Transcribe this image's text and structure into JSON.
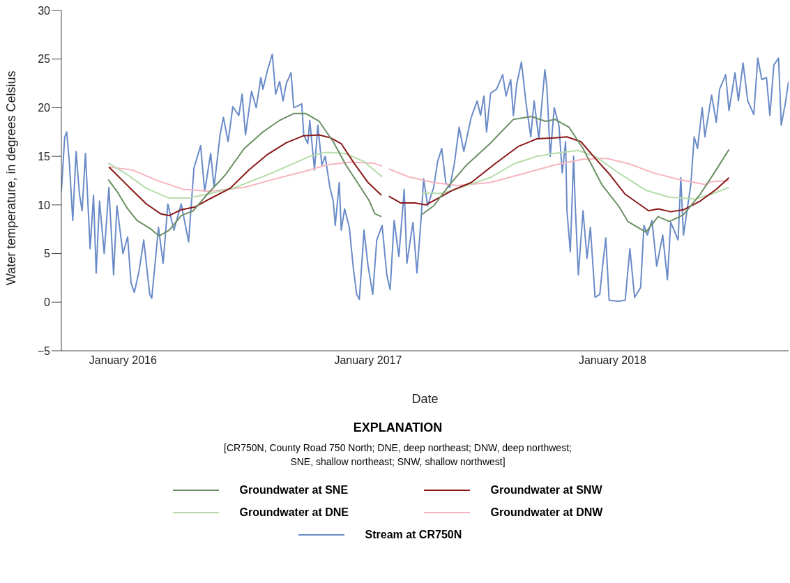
{
  "chart_data": {
    "type": "line",
    "xlabel": "Date",
    "ylabel": "Water temperature, in degrees Celsius",
    "legend_title": "EXPLANATION",
    "annotations": [
      "[CR750N, County Road 750 North; DNE, deep northeast; DNW, deep northwest;\nSNE, shallow northeast; SNW, shallow northwest]"
    ],
    "legend": "bottom",
    "marker": "none",
    "line_style": "solid",
    "grid": false,
    "xlim": [
      "2015-10-01",
      "2018-09-21"
    ],
    "xticks": [
      {
        "value": "2016-01-01",
        "label": "January 2016"
      },
      {
        "value": "2017-01-01",
        "label": "January 2017"
      },
      {
        "value": "2018-01-01",
        "label": "January 2018"
      }
    ],
    "ylim": [
      -5,
      30
    ],
    "yticks": [
      {
        "value": -5,
        "label": "−5"
      },
      0,
      5,
      10,
      15,
      20,
      25,
      30
    ],
    "series": [
      {
        "name": "Groundwater at SNE",
        "color": "#6b8f64",
        "x": [
          "2015-12-10",
          "2015-12-23",
          "2016-01-08",
          "2016-01-22",
          "2016-02-12",
          "2016-02-24",
          "2016-03-10",
          "2016-03-28",
          "2016-04-15",
          "2016-05-06",
          "2016-06-02",
          "2016-06-30",
          "2016-07-28",
          "2016-08-22",
          "2016-09-12",
          "2016-09-30",
          "2016-10-20",
          "2016-11-10",
          "2016-11-29",
          "2016-12-18",
          "2017-01-03",
          "2017-01-11",
          "2017-01-21",
          "2017-02-15",
          "2017-03-22",
          "2017-04-09",
          "2017-05-03",
          "2017-05-28",
          "2017-07-02",
          "2017-08-06",
          "2017-09-02",
          "2017-09-23",
          "2017-10-07",
          "2017-10-28",
          "2017-11-18",
          "2017-12-16",
          "2018-01-10",
          "2018-01-24",
          "2018-02-20",
          "2018-03-10",
          "2018-03-27",
          "2018-04-17",
          "2018-05-12",
          "2018-06-02",
          "2018-06-24"
        ],
        "values": [
          12.6,
          11.4,
          9.6,
          8.4,
          7.5,
          6.8,
          7.4,
          8.9,
          9.4,
          11.1,
          13.1,
          15.8,
          17.5,
          18.7,
          19.4,
          19.4,
          18.6,
          16.5,
          14.1,
          12.1,
          10.4,
          9.1,
          8.8,
          null,
          9.0,
          9.9,
          12.1,
          14.1,
          16.3,
          18.8,
          19.1,
          18.6,
          18.8,
          18.0,
          15.8,
          12.1,
          9.9,
          8.3,
          7.2,
          8.8,
          8.3,
          9.0,
          11.1,
          13.3,
          15.7
        ]
      },
      {
        "name": "Groundwater at SNW",
        "color": "#8b1717",
        "x": [
          "2015-12-11",
          "2015-12-30",
          "2016-01-15",
          "2016-02-05",
          "2016-02-26",
          "2016-03-10",
          "2016-03-28",
          "2016-04-18",
          "2016-05-09",
          "2016-06-09",
          "2016-07-07",
          "2016-08-04",
          "2016-09-01",
          "2016-09-26",
          "2016-10-20",
          "2016-11-06",
          "2016-11-22",
          "2016-12-11",
          "2017-01-01",
          "2017-01-21",
          "2017-01-27",
          "2017-02-01",
          "2017-02-19",
          "2017-03-12",
          "2017-03-28",
          "2017-04-16",
          "2017-05-07",
          "2017-06-04",
          "2017-07-09",
          "2017-08-13",
          "2017-09-10",
          "2017-10-06",
          "2017-10-25",
          "2017-11-15",
          "2017-12-06",
          "2017-12-27",
          "2018-01-20",
          "2018-02-24",
          "2018-03-10",
          "2018-03-29",
          "2018-04-17",
          "2018-05-12",
          "2018-06-05",
          "2018-06-24"
        ],
        "values": [
          13.9,
          12.6,
          11.5,
          10.1,
          9.1,
          8.9,
          9.5,
          9.8,
          10.6,
          11.7,
          13.6,
          15.2,
          16.4,
          17.1,
          17.2,
          16.9,
          16.3,
          14.3,
          12.3,
          11.0,
          null,
          10.9,
          10.2,
          10.2,
          10.0,
          10.7,
          11.5,
          12.3,
          14.2,
          16.0,
          16.8,
          16.9,
          17.0,
          16.5,
          14.8,
          13.2,
          11.1,
          9.4,
          9.6,
          9.3,
          9.5,
          10.4,
          11.6,
          12.8
        ]
      },
      {
        "name": "Groundwater at DNE",
        "color": "#b6dcab",
        "x": [
          "2015-12-10",
          "2016-01-08",
          "2016-02-05",
          "2016-03-10",
          "2016-04-08",
          "2016-05-06",
          "2016-06-17",
          "2016-08-11",
          "2016-10-06",
          "2016-10-30",
          "2016-11-27",
          "2016-12-25",
          "2017-01-22",
          "2017-02-20",
          "2017-03-22",
          "2017-04-23",
          "2017-05-28",
          "2017-07-02",
          "2017-08-06",
          "2017-09-10",
          "2017-10-06",
          "2017-11-11",
          "2017-12-06",
          "2018-01-10",
          "2018-02-20",
          "2018-03-27",
          "2018-05-05",
          "2018-05-29",
          "2018-06-24"
        ],
        "values": [
          14.3,
          13.1,
          11.7,
          10.7,
          10.7,
          11.1,
          11.8,
          13.3,
          15.0,
          15.4,
          15.3,
          14.5,
          12.9,
          null,
          11.2,
          11.2,
          12.0,
          12.8,
          14.2,
          15.0,
          15.3,
          15.6,
          15.0,
          13.3,
          11.5,
          10.8,
          10.6,
          11.1,
          11.8
        ]
      },
      {
        "name": "Groundwater at DNW",
        "color": "#f7b4bf",
        "x": [
          "2015-12-11",
          "2016-01-15",
          "2016-02-18",
          "2016-03-31",
          "2016-05-09",
          "2016-06-30",
          "2016-08-11",
          "2016-10-06",
          "2016-10-30",
          "2016-12-04",
          "2017-01-09",
          "2017-01-22",
          "2017-01-27",
          "2017-02-01",
          "2017-03-02",
          "2017-04-09",
          "2017-05-14",
          "2017-07-02",
          "2017-08-20",
          "2017-10-06",
          "2017-11-18",
          "2017-12-23",
          "2018-01-27",
          "2018-03-03",
          "2018-04-11",
          "2018-05-19",
          "2018-05-29",
          "2018-06-24"
        ],
        "values": [
          13.9,
          13.6,
          12.6,
          11.6,
          11.4,
          11.8,
          12.6,
          13.6,
          14.1,
          14.4,
          14.3,
          14.0,
          null,
          13.7,
          12.9,
          12.3,
          12.0,
          12.3,
          13.2,
          14.1,
          14.7,
          14.8,
          14.2,
          13.3,
          12.6,
          12.1,
          12.4,
          12.5
        ]
      },
      {
        "name": "Stream at CR750N",
        "color": "#6a8bc8",
        "x": [
          "2015-10-01",
          "2015-10-06",
          "2015-10-09",
          "2015-10-13",
          "2015-10-18",
          "2015-10-23",
          "2015-10-28",
          "2015-11-01",
          "2015-11-06",
          "2015-11-13",
          "2015-11-18",
          "2015-11-22",
          "2015-11-27",
          "2015-12-04",
          "2015-12-11",
          "2015-12-18",
          "2015-12-23",
          "2016-01-01",
          "2016-01-08",
          "2016-01-13",
          "2016-01-18",
          "2016-01-25",
          "2016-02-01",
          "2016-02-10",
          "2016-02-13",
          "2016-02-18",
          "2016-02-23",
          "2016-03-01",
          "2016-03-08",
          "2016-03-17",
          "2016-03-28",
          "2016-04-08",
          "2016-04-16",
          "2016-04-26",
          "2016-05-02",
          "2016-05-11",
          "2016-05-16",
          "2016-05-25",
          "2016-05-30",
          "2016-06-06",
          "2016-06-13",
          "2016-06-22",
          "2016-06-27",
          "2016-07-02",
          "2016-07-11",
          "2016-07-18",
          "2016-07-25",
          "2016-07-28",
          "2016-08-04",
          "2016-08-11",
          "2016-08-16",
          "2016-08-22",
          "2016-08-27",
          "2016-09-01",
          "2016-09-08",
          "2016-09-12",
          "2016-09-19",
          "2016-09-24",
          "2016-09-27",
          "2016-10-03",
          "2016-10-06",
          "2016-10-13",
          "2016-10-18",
          "2016-10-24",
          "2016-10-29",
          "2016-11-05",
          "2016-11-10",
          "2016-11-13",
          "2016-11-19",
          "2016-11-22",
          "2016-11-27",
          "2016-12-04",
          "2016-12-10",
          "2016-12-15",
          "2016-12-19",
          "2016-12-26",
          "2017-01-01",
          "2017-01-08",
          "2017-01-14",
          "2017-01-22",
          "2017-01-29",
          "2017-02-03",
          "2017-02-09",
          "2017-02-16",
          "2017-02-24",
          "2017-02-28",
          "2017-03-09",
          "2017-03-15",
          "2017-03-21",
          "2017-03-25",
          "2017-03-31",
          "2017-04-09",
          "2017-04-15",
          "2017-04-21",
          "2017-04-27",
          "2017-05-03",
          "2017-05-10",
          "2017-05-17",
          "2017-05-24",
          "2017-06-04",
          "2017-06-13",
          "2017-06-18",
          "2017-06-23",
          "2017-06-27",
          "2017-07-03",
          "2017-07-12",
          "2017-07-21",
          "2017-07-26",
          "2017-08-02",
          "2017-08-06",
          "2017-08-11",
          "2017-08-18",
          "2017-08-25",
          "2017-09-01",
          "2017-09-06",
          "2017-09-13",
          "2017-09-22",
          "2017-09-25",
          "2017-09-30",
          "2017-10-06",
          "2017-10-13",
          "2017-10-18",
          "2017-10-23",
          "2017-10-25",
          "2017-10-30",
          "2017-11-04",
          "2017-11-06",
          "2017-11-11",
          "2017-11-18",
          "2017-11-24",
          "2017-11-29",
          "2017-12-06",
          "2017-12-13",
          "2017-12-18",
          "2017-12-22",
          "2017-12-27",
          "2018-01-10",
          "2018-01-20",
          "2018-01-27",
          "2018-02-03",
          "2018-02-12",
          "2018-02-17",
          "2018-02-22",
          "2018-03-01",
          "2018-03-08",
          "2018-03-17",
          "2018-03-24",
          "2018-03-29",
          "2018-04-09",
          "2018-04-13",
          "2018-04-17",
          "2018-04-28",
          "2018-05-03",
          "2018-05-08",
          "2018-05-15",
          "2018-05-19",
          "2018-05-29",
          "2018-06-05",
          "2018-06-10",
          "2018-06-19",
          "2018-06-24",
          "2018-07-03",
          "2018-07-08",
          "2018-07-15",
          "2018-07-22",
          "2018-07-31",
          "2018-08-06",
          "2018-08-12",
          "2018-08-19",
          "2018-08-24",
          "2018-08-30",
          "2018-09-06",
          "2018-09-10",
          "2018-09-16",
          "2018-09-21"
        ],
        "values": [
          11.4,
          17.0,
          17.5,
          14.3,
          8.4,
          15.5,
          11.1,
          9.4,
          15.3,
          5.5,
          11.0,
          3.0,
          10.4,
          5.0,
          11.8,
          2.8,
          9.9,
          5.0,
          6.7,
          2.0,
          1.0,
          3.2,
          6.4,
          0.8,
          0.4,
          4.0,
          7.7,
          4.0,
          10.1,
          7.4,
          10.1,
          6.2,
          13.8,
          16.1,
          11.4,
          15.3,
          11.8,
          17.2,
          19.0,
          16.5,
          20.1,
          19.2,
          21.4,
          17.2,
          21.7,
          20.0,
          23.1,
          21.9,
          23.9,
          25.5,
          21.4,
          22.7,
          20.7,
          22.5,
          23.6,
          20.0,
          20.2,
          20.4,
          17.2,
          16.3,
          18.7,
          13.6,
          18.2,
          14.1,
          15.0,
          11.8,
          10.4,
          7.9,
          12.3,
          7.4,
          9.6,
          7.7,
          3.5,
          0.8,
          0.3,
          7.4,
          3.7,
          0.8,
          6.4,
          7.9,
          2.8,
          1.3,
          8.4,
          4.7,
          11.6,
          4.0,
          8.2,
          3.0,
          8.4,
          12.7,
          9.9,
          11.8,
          14.5,
          15.8,
          12.3,
          11.8,
          14.3,
          18.0,
          15.5,
          19.0,
          20.7,
          19.2,
          21.2,
          17.5,
          21.5,
          21.9,
          23.4,
          21.2,
          22.9,
          19.2,
          22.4,
          24.7,
          20.4,
          17.0,
          20.7,
          16.8,
          23.9,
          22.2,
          15.0,
          20.0,
          18.2,
          13.3,
          16.5,
          9.4,
          5.2,
          15.0,
          10.6,
          2.8,
          9.4,
          4.5,
          7.7,
          0.5,
          0.8,
          4.2,
          6.6,
          0.2,
          0.1,
          0.2,
          5.5,
          0.5,
          1.5,
          7.9,
          6.9,
          8.4,
          3.7,
          6.9,
          2.3,
          8.2,
          6.4,
          12.8,
          6.9,
          12.1,
          17.0,
          15.8,
          20.0,
          17.0,
          21.3,
          18.5,
          21.9,
          23.4,
          19.7,
          23.6,
          20.7,
          24.6,
          20.7,
          19.3,
          25.1,
          22.9,
          23.1,
          19.2,
          24.4,
          25.1,
          18.2,
          20.4,
          22.7
        ]
      }
    ]
  }
}
